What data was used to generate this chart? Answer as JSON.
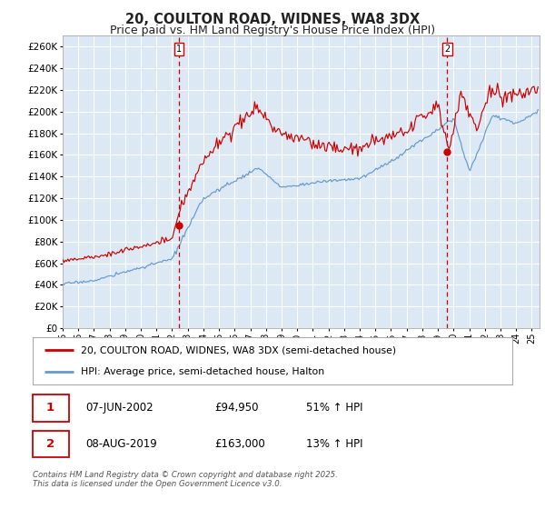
{
  "title": "20, COULTON ROAD, WIDNES, WA8 3DX",
  "subtitle": "Price paid vs. HM Land Registry's House Price Index (HPI)",
  "ylim": [
    0,
    270000
  ],
  "yticks": [
    0,
    20000,
    40000,
    60000,
    80000,
    100000,
    120000,
    140000,
    160000,
    180000,
    200000,
    220000,
    240000,
    260000
  ],
  "xlim_start": 1995.0,
  "xlim_end": 2025.5,
  "xtick_years": [
    1995,
    1996,
    1997,
    1998,
    1999,
    2000,
    2001,
    2002,
    2003,
    2004,
    2005,
    2006,
    2007,
    2008,
    2009,
    2010,
    2011,
    2012,
    2013,
    2014,
    2015,
    2016,
    2017,
    2018,
    2019,
    2020,
    2021,
    2022,
    2023,
    2024,
    2025
  ],
  "vline1_x": 2002.44,
  "vline2_x": 2019.6,
  "marker1_x": 2002.44,
  "marker1_y": 94950,
  "marker2_x": 2019.6,
  "marker2_y": 163000,
  "legend_line1": "20, COULTON ROAD, WIDNES, WA8 3DX (semi-detached house)",
  "legend_line2": "HPI: Average price, semi-detached house, Halton",
  "line1_color": "#cc0000",
  "line2_color": "#6699cc",
  "vline_color": "#cc0000",
  "marker_color": "#cc0000",
  "annotation1_label": "1",
  "annotation2_label": "2",
  "table_row1": [
    "1",
    "07-JUN-2002",
    "£94,950",
    "51% ↑ HPI"
  ],
  "table_row2": [
    "2",
    "08-AUG-2019",
    "£163,000",
    "13% ↑ HPI"
  ],
  "footer": "Contains HM Land Registry data © Crown copyright and database right 2025.\nThis data is licensed under the Open Government Licence v3.0.",
  "bg_color": "#ffffff",
  "plot_bg_color": "#dce9f5",
  "grid_color": "#ffffff",
  "title_fontsize": 10.5,
  "subtitle_fontsize": 9,
  "axis_fontsize": 7.5,
  "legend_fontsize": 8
}
